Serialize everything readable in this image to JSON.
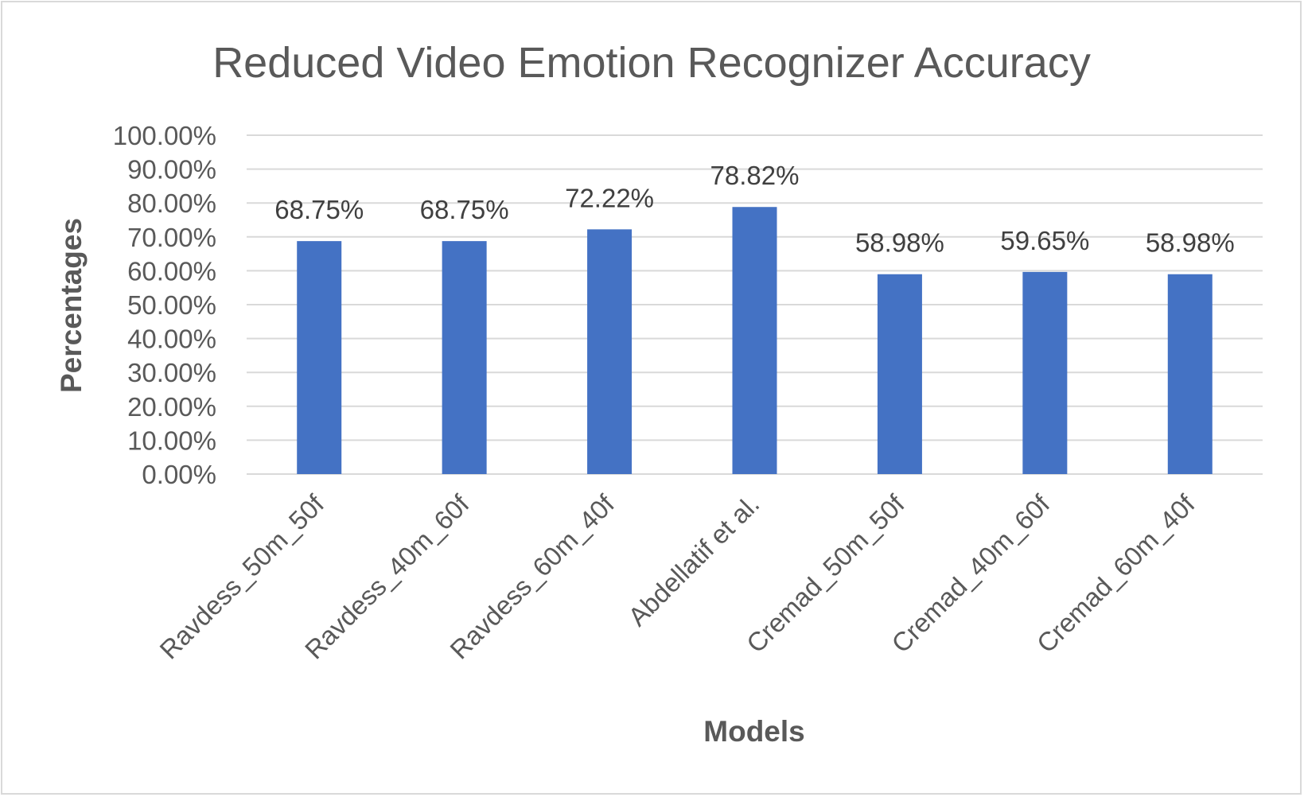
{
  "chart_data": {
    "type": "bar",
    "title": "Reduced Video Emotion Recognizer Accuracy",
    "xlabel": "Models",
    "ylabel": "Percentages",
    "categories": [
      "Ravdess_50m_50f",
      "Ravdess_40m_60f",
      "Ravdess_60m_40f",
      "Abdellatif et al.",
      "Cremad_50m_50f",
      "Cremad_40m_60f",
      "Cremad_60m_40f"
    ],
    "values": [
      68.75,
      68.75,
      72.22,
      78.82,
      58.98,
      59.65,
      58.98
    ],
    "data_labels": [
      "68.75%",
      "68.75%",
      "72.22%",
      "78.82%",
      "58.98%",
      "59.65%",
      "58.98%"
    ],
    "ylim": [
      0,
      100
    ],
    "yticks": [
      "0.00%",
      "10.00%",
      "20.00%",
      "30.00%",
      "40.00%",
      "50.00%",
      "60.00%",
      "70.00%",
      "80.00%",
      "90.00%",
      "100.00%"
    ],
    "grid": true,
    "legend": "none",
    "bar_color": "#4472c4"
  }
}
